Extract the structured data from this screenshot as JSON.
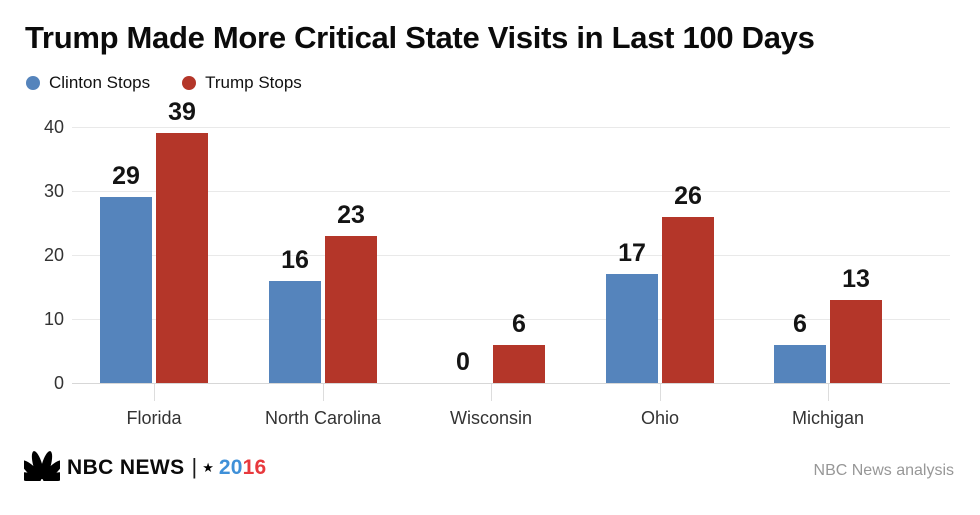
{
  "header": {
    "title": "Trump Made More Critical State Visits in Last 100 Days"
  },
  "legend": {
    "items": [
      {
        "label": "Clinton Stops",
        "color": "#5584bc"
      },
      {
        "label": "Trump Stops",
        "color": "#b43629"
      }
    ]
  },
  "chart_data": {
    "type": "bar",
    "title": "Trump Made More Critical State Visits in Last 100 Days",
    "categories": [
      "Florida",
      "North Carolina",
      "Wisconsin",
      "Ohio",
      "Michigan"
    ],
    "series": [
      {
        "name": "Clinton Stops",
        "color": "#5584bc",
        "values": [
          29,
          16,
          0,
          17,
          6
        ]
      },
      {
        "name": "Trump Stops",
        "color": "#b43629",
        "values": [
          39,
          23,
          6,
          26,
          13
        ]
      }
    ],
    "xlabel": "",
    "ylabel": "",
    "ylim": [
      0,
      40
    ],
    "yticks": [
      0,
      10,
      20,
      30,
      40
    ],
    "grid": true,
    "grouped": true,
    "bar_value_labels": true,
    "legend_position": "top-left"
  },
  "footer": {
    "brand_name": "NBC NEWS",
    "separator": "|",
    "star": "★",
    "year_part1": "20",
    "year_part2": "16",
    "year_color1": "#3f90d8",
    "year_color2": "#e8393d",
    "credit": "NBC News analysis"
  },
  "colors": {
    "clinton_blue": "#5584bc",
    "trump_red": "#b43629",
    "gridline": "#e9e9e9",
    "axis_line": "#d7d7d7",
    "category_tick": "#dddddd",
    "tick_label": "#333333",
    "value_label": "#141414",
    "credit_text": "#979797",
    "background": "#ffffff"
  }
}
